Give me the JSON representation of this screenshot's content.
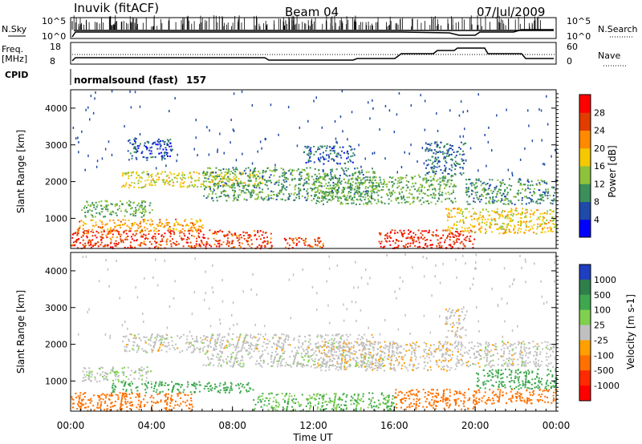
{
  "header": {
    "station": "Inuvik (fitACF)",
    "beam": "Beam 04",
    "date": "07/Jul/2009"
  },
  "summary_panels": {
    "noise": {
      "left_label": "N.Sky",
      "right_label": "N.Search",
      "left_ticks": [
        "10^5",
        "10^0"
      ],
      "right_ticks": [
        "10^5",
        "10^0"
      ]
    },
    "freq": {
      "left_label": "Freq.",
      "left_unit": "[MHz]",
      "right_label": "Nave",
      "left_ticks": [
        "18",
        "8"
      ],
      "right_ticks": [
        "60",
        "0"
      ]
    },
    "cpid": {
      "label": "CPID",
      "mode": "normalsound (fast)",
      "id": "157"
    }
  },
  "chart_data": [
    {
      "type": "heatmap",
      "name": "power",
      "ylabel": "Slant Range [km]",
      "ylim": [
        180,
        4500
      ],
      "yticks": [
        "1000",
        "2000",
        "3000",
        "4000"
      ],
      "colorbar": {
        "label": "Power [dB]",
        "ticks": [
          "4",
          "8",
          "12",
          "16",
          "20",
          "24",
          "28"
        ],
        "range": [
          0,
          32
        ],
        "colors": [
          "#0000ff",
          "#1f4aa8",
          "#3a8f5a",
          "#8cc33a",
          "#f5c800",
          "#ff8a00",
          "#e23c00",
          "#ff0000"
        ]
      },
      "bands": [
        {
          "t0": 0.0,
          "t1": 10.0,
          "r0": 200,
          "r1": 700,
          "level": 27
        },
        {
          "t0": 0.3,
          "t1": 6.5,
          "r0": 650,
          "r1": 1000,
          "level": 21
        },
        {
          "t0": 0.5,
          "t1": 4.0,
          "r0": 1050,
          "r1": 1500,
          "level": 12
        },
        {
          "t0": 2.5,
          "t1": 9.5,
          "r0": 1850,
          "r1": 2300,
          "level": 17
        },
        {
          "t0": 6.5,
          "t1": 15.0,
          "r0": 1500,
          "r1": 2400,
          "level": 11
        },
        {
          "t0": 12.0,
          "t1": 19.0,
          "r0": 1400,
          "r1": 2200,
          "level": 12
        },
        {
          "t0": 10.5,
          "t1": 12.5,
          "r0": 200,
          "r1": 500,
          "level": 26
        },
        {
          "t0": 15.2,
          "t1": 20.0,
          "r0": 200,
          "r1": 700,
          "level": 28
        },
        {
          "t0": 18.5,
          "t1": 24.0,
          "r0": 600,
          "r1": 1300,
          "level": 18
        },
        {
          "t0": 19.5,
          "t1": 24.0,
          "r0": 1400,
          "r1": 2100,
          "level": 10
        },
        {
          "t0": 17.5,
          "t1": 19.5,
          "r0": 2200,
          "r1": 3100,
          "level": 8
        },
        {
          "t0": 2.8,
          "t1": 5.0,
          "r0": 2600,
          "r1": 3200,
          "level": 6
        },
        {
          "t0": 11.5,
          "t1": 14.0,
          "r0": 2500,
          "r1": 3000,
          "level": 7
        }
      ]
    },
    {
      "type": "heatmap",
      "name": "velocity",
      "ylabel": "Slant Range [km]",
      "xlabel": "Time UT",
      "ylim": [
        180,
        4500
      ],
      "yticks": [
        "1000",
        "2000",
        "3000",
        "4000"
      ],
      "xticks": [
        "00:00",
        "04:00",
        "08:00",
        "12:00",
        "16:00",
        "20:00",
        "00:00"
      ],
      "xlim": [
        0,
        24
      ],
      "colorbar": {
        "label": "Velocity [m s-1]",
        "ticks": [
          "1000",
          "500",
          "100",
          "25",
          "-25",
          "-100",
          "-500",
          "-1000"
        ],
        "colors": [
          "#1f3fc0",
          "#2f7f4a",
          "#3fa84f",
          "#7fd04f",
          "#c0c0c0",
          "#ffa000",
          "#ff7000",
          "#ff2a00",
          "#ff0000"
        ]
      },
      "bands": [
        {
          "t0": 0.0,
          "t1": 6.0,
          "r0": 200,
          "r1": 700,
          "v": -150
        },
        {
          "t0": 2.0,
          "t1": 9.0,
          "r0": 700,
          "r1": 1000,
          "v": 200
        },
        {
          "t0": 0.5,
          "t1": 4.0,
          "r0": 1000,
          "r1": 1400,
          "v": 20
        },
        {
          "t0": 2.5,
          "t1": 15.0,
          "r0": 1800,
          "r1": 2300,
          "v": 0
        },
        {
          "t0": 6.5,
          "t1": 15.5,
          "r0": 1400,
          "r1": 1800,
          "v": 10
        },
        {
          "t0": 12.0,
          "t1": 19.0,
          "r0": 1300,
          "r1": 2100,
          "v": -10
        },
        {
          "t0": 9.0,
          "t1": 16.0,
          "r0": 200,
          "r1": 700,
          "v": 100
        },
        {
          "t0": 16.0,
          "t1": 20.0,
          "r0": 250,
          "r1": 800,
          "v": -400
        },
        {
          "t0": 20.0,
          "t1": 24.0,
          "r0": 800,
          "r1": 1350,
          "v": 300
        },
        {
          "t0": 20.0,
          "t1": 24.0,
          "r0": 400,
          "r1": 800,
          "v": -200
        },
        {
          "t0": 19.0,
          "t1": 24.0,
          "r0": 1400,
          "r1": 2100,
          "v": 0
        },
        {
          "t0": 18.5,
          "t1": 19.5,
          "r0": 2200,
          "r1": 3000,
          "v": -5
        }
      ]
    }
  ]
}
